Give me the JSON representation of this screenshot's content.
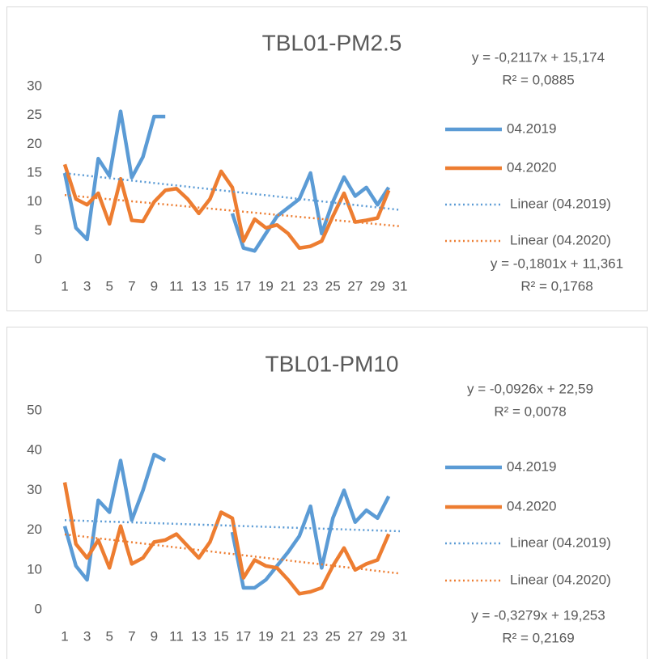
{
  "charts": [
    {
      "chart_data": {
        "type": "line",
        "title": "TBL01-PM2.5",
        "categories": [
          "1",
          null,
          "3",
          null,
          "5",
          null,
          "7",
          null,
          "9",
          null,
          "11",
          null,
          "13",
          null,
          "15",
          null,
          "17",
          null,
          "19",
          null,
          "21",
          null,
          "23",
          null,
          "25",
          null,
          "27",
          null,
          "29",
          null,
          "31"
        ],
        "ylim": [
          0,
          30
        ],
        "yticks": [
          0,
          5,
          10,
          15,
          20,
          25,
          30
        ],
        "series": [
          {
            "name": "04.2019",
            "color": "#5b9bd5",
            "values": [
              15,
              5.5,
              3.5,
              17.5,
              14.5,
              25.7,
              14.2,
              17.8,
              24.8,
              24.8,
              null,
              null,
              null,
              null,
              null,
              8,
              2,
              1.5,
              4.5,
              7.5,
              9,
              10.5,
              15,
              4.5,
              10,
              14.3,
              11,
              12.5,
              9.5,
              12.5,
              null
            ]
          },
          {
            "name": "04.2020",
            "color": "#ed7d31",
            "values": [
              16.5,
              10.5,
              9.5,
              11.5,
              6.2,
              14,
              6.8,
              6.6,
              10,
              12,
              12.3,
              10.5,
              8,
              10.5,
              15.3,
              12.5,
              3.2,
              7,
              5.5,
              6,
              4.5,
              2,
              2.3,
              3.2,
              7.5,
              11.5,
              6.5,
              6.8,
              7.2,
              12,
              null
            ]
          }
        ],
        "trendlines": [
          {
            "name": "Linear (04.2019)",
            "color": "#5b9bd5",
            "slope": -0.2117,
            "intercept": 15.174,
            "equation": "y = -0,2117x + 15,174",
            "r_squared": "R² = 0,0885"
          },
          {
            "name": "Linear (04.2020)",
            "color": "#ed7d31",
            "slope": -0.1801,
            "intercept": 11.361,
            "equation": "y = -0,1801x + 11,361",
            "r_squared": "R² = 0,1768"
          }
        ]
      }
    },
    {
      "chart_data": {
        "type": "line",
        "title": "TBL01-PM10",
        "categories": [
          "1",
          null,
          "3",
          null,
          "5",
          null,
          "7",
          null,
          "9",
          null,
          "11",
          null,
          "13",
          null,
          "15",
          null,
          "17",
          null,
          "19",
          null,
          "21",
          null,
          "23",
          null,
          "25",
          null,
          "27",
          null,
          "29",
          null,
          "31"
        ],
        "ylim": [
          0,
          50
        ],
        "yticks": [
          0,
          10,
          20,
          30,
          40,
          50
        ],
        "series": [
          {
            "name": "04.2019",
            "color": "#5b9bd5",
            "values": [
              21,
              11,
              7.5,
              27.5,
              24.5,
              37.5,
              22.5,
              30,
              39,
              37.5,
              null,
              null,
              null,
              null,
              null,
              19.5,
              5.5,
              5.5,
              7.5,
              11,
              14.5,
              18.5,
              26,
              10.5,
              23,
              30,
              22,
              25,
              23,
              28.5,
              null
            ]
          },
          {
            "name": "04.2020",
            "color": "#ed7d31",
            "values": [
              32,
              16.5,
              13,
              17.5,
              10.5,
              21,
              11.5,
              13,
              17,
              17.5,
              19,
              16,
              13,
              17,
              24.5,
              23,
              8,
              12.5,
              11,
              10.5,
              7.5,
              4,
              4.5,
              5.5,
              11,
              15.5,
              10,
              11.5,
              12.5,
              19,
              null
            ]
          }
        ],
        "trendlines": [
          {
            "name": "Linear (04.2019)",
            "color": "#5b9bd5",
            "slope": -0.0926,
            "intercept": 22.59,
            "equation": "y = -0,0926x + 22,59",
            "r_squared": "R² = 0,0078"
          },
          {
            "name": "Linear (04.2020)",
            "color": "#ed7d31",
            "slope": -0.3279,
            "intercept": 19.253,
            "equation": "y = -0,3279x + 19,253",
            "r_squared": "R² = 0,2169"
          }
        ]
      }
    }
  ]
}
